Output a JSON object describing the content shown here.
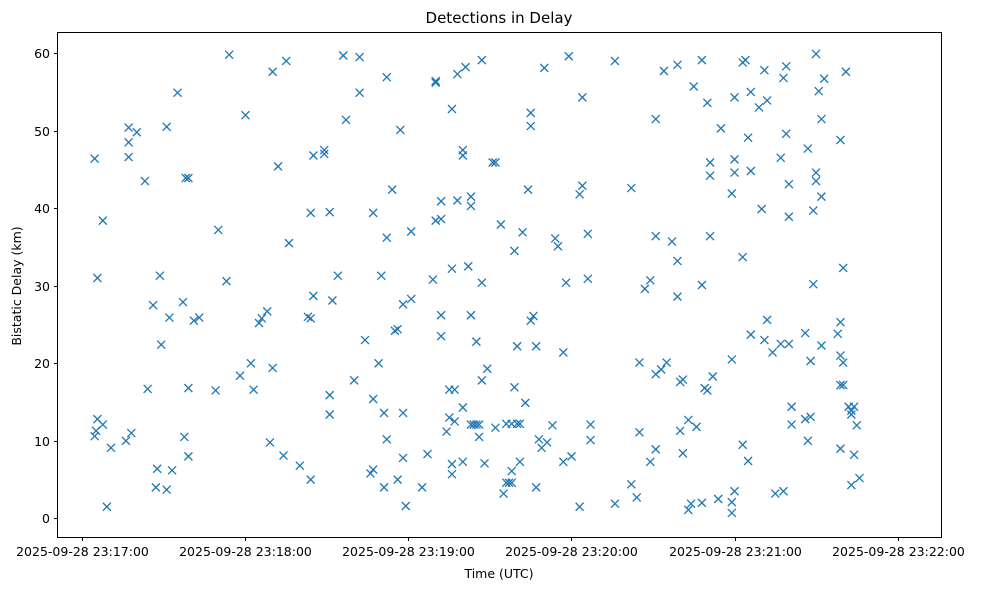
{
  "chart_data": {
    "type": "scatter",
    "title": "Detections in Delay",
    "xlabel": "Time (UTC)",
    "ylabel": "Bistatic Delay (km)",
    "x_axis": "time",
    "xlim": [
      "2025-09-28 23:16:51",
      "2025-09-28 23:22:16"
    ],
    "ylim": [
      -2.4,
      62.6
    ],
    "x_ticks": [
      {
        "value": "2025-09-28 23:17:00",
        "label": "2025-09-28 23:17:00"
      },
      {
        "value": "2025-09-28 23:18:00",
        "label": "2025-09-28 23:18:00"
      },
      {
        "value": "2025-09-28 23:19:00",
        "label": "2025-09-28 23:19:00"
      },
      {
        "value": "2025-09-28 23:20:00",
        "label": "2025-09-28 23:20:00"
      },
      {
        "value": "2025-09-28 23:21:00",
        "label": "2025-09-28 23:21:00"
      },
      {
        "value": "2025-09-28 23:22:00",
        "label": "2025-09-28 23:22:00"
      }
    ],
    "y_ticks": [
      0,
      10,
      20,
      30,
      40,
      50,
      60
    ],
    "marker": "x",
    "grid": false,
    "color": "#1f77b4",
    "points": [
      [
        "23:17:04.5",
        46.4
      ],
      [
        "23:17:04.5",
        10.6
      ],
      [
        "23:17:05.0",
        11.3
      ],
      [
        "23:17:05.5",
        31.0
      ],
      [
        "23:17:05.5",
        12.8
      ],
      [
        "23:17:07.5",
        38.4
      ],
      [
        "23:17:07.5",
        12.1
      ],
      [
        "23:17:09.0",
        1.5
      ],
      [
        "23:17:10.5",
        9.1
      ],
      [
        "23:17:16.0",
        10.0
      ],
      [
        "23:17:17.0",
        50.4
      ],
      [
        "23:17:17.0",
        48.5
      ],
      [
        "23:17:17.0",
        46.6
      ],
      [
        "23:17:18.0",
        11.0
      ],
      [
        "23:17:20.0",
        49.8
      ],
      [
        "23:17:23.0",
        43.5
      ],
      [
        "23:17:24.0",
        16.7
      ],
      [
        "23:17:26.0",
        27.5
      ],
      [
        "23:17:27.0",
        4.0
      ],
      [
        "23:17:27.5",
        6.4
      ],
      [
        "23:17:28.5",
        31.3
      ],
      [
        "23:17:29.0",
        22.4
      ],
      [
        "23:17:31.0",
        50.5
      ],
      [
        "23:17:31.0",
        3.7
      ],
      [
        "23:17:32.0",
        25.9
      ],
      [
        "23:17:33.0",
        6.2
      ],
      [
        "23:17:35.0",
        54.9
      ],
      [
        "23:17:37.0",
        27.9
      ],
      [
        "23:17:37.5",
        10.5
      ],
      [
        "23:17:38.0",
        43.9
      ],
      [
        "23:17:39.0",
        43.9
      ],
      [
        "23:17:39.0",
        16.8
      ],
      [
        "23:17:39.0",
        8.0
      ],
      [
        "23:17:41.0",
        25.5
      ],
      [
        "23:17:43.0",
        25.9
      ],
      [
        "23:17:49.0",
        16.5
      ],
      [
        "23:17:50.0",
        37.2
      ],
      [
        "23:17:53.0",
        30.6
      ],
      [
        "23:17:54.0",
        59.8
      ],
      [
        "23:17:58.0",
        18.4
      ],
      [
        "23:18:00.0",
        52.0
      ],
      [
        "23:18:02.0",
        20.0
      ],
      [
        "23:18:03.0",
        16.6
      ],
      [
        "23:18:05.0",
        25.2
      ],
      [
        "23:18:06.0",
        25.8
      ],
      [
        "23:18:08.0",
        26.7
      ],
      [
        "23:18:09.0",
        9.8
      ],
      [
        "23:18:10.0",
        19.4
      ],
      [
        "23:18:10.0",
        57.6
      ],
      [
        "23:18:12.0",
        45.4
      ],
      [
        "23:18:14.0",
        8.1
      ],
      [
        "23:18:15.0",
        59.0
      ],
      [
        "23:18:16.0",
        35.5
      ],
      [
        "23:18:20.0",
        6.8
      ],
      [
        "23:18:23.0",
        26.0
      ],
      [
        "23:18:24.0",
        25.8
      ],
      [
        "23:18:24.0",
        39.4
      ],
      [
        "23:18:24.0",
        5.0
      ],
      [
        "23:18:25.0",
        46.8
      ],
      [
        "23:18:25.0",
        28.7
      ],
      [
        "23:18:29.0",
        47.5
      ],
      [
        "23:18:29.0",
        47.0
      ],
      [
        "23:18:31.0",
        39.5
      ],
      [
        "23:18:31.0",
        15.9
      ],
      [
        "23:18:31.0",
        13.4
      ],
      [
        "23:18:32.0",
        28.1
      ],
      [
        "23:18:34.0",
        31.3
      ],
      [
        "23:18:36.0",
        59.7
      ],
      [
        "23:18:37.0",
        51.4
      ],
      [
        "23:18:40.0",
        17.8
      ],
      [
        "23:18:42.0",
        59.5
      ],
      [
        "23:18:42.0",
        54.9
      ],
      [
        "23:18:44.0",
        23.0
      ],
      [
        "23:18:46.0",
        5.8
      ],
      [
        "23:18:47.0",
        15.4
      ],
      [
        "23:18:47.0",
        6.3
      ],
      [
        "23:18:47.0",
        39.4
      ],
      [
        "23:18:49.0",
        20.0
      ],
      [
        "23:18:50.0",
        31.3
      ],
      [
        "23:18:51.0",
        13.6
      ],
      [
        "23:18:51.0",
        4.0
      ],
      [
        "23:18:52.0",
        10.2
      ],
      [
        "23:18:52.0",
        36.2
      ],
      [
        "23:18:52.0",
        56.9
      ],
      [
        "23:18:54.0",
        42.4
      ],
      [
        "23:18:55.0",
        24.2
      ],
      [
        "23:18:56.0",
        24.4
      ],
      [
        "23:18:56.0",
        5.0
      ],
      [
        "23:18:57.0",
        50.1
      ],
      [
        "23:18:58.0",
        13.6
      ],
      [
        "23:18:58.0",
        7.8
      ],
      [
        "23:18:58.0",
        27.6
      ],
      [
        "23:18:59.0",
        1.6
      ],
      [
        "23:19:01.0",
        28.3
      ],
      [
        "23:19:01.0",
        37.0
      ],
      [
        "23:19:05.0",
        4.0
      ],
      [
        "23:19:07.0",
        8.3
      ],
      [
        "23:19:09.0",
        30.8
      ],
      [
        "23:19:10.0",
        56.4
      ],
      [
        "23:19:10.0",
        56.2
      ],
      [
        "23:19:10.0",
        38.4
      ],
      [
        "23:19:12.0",
        40.9
      ],
      [
        "23:19:12.0",
        38.6
      ],
      [
        "23:19:12.0",
        26.2
      ],
      [
        "23:19:12.0",
        23.5
      ],
      [
        "23:19:14.0",
        11.2
      ],
      [
        "23:19:15.0",
        13.0
      ],
      [
        "23:19:15.0",
        16.6
      ],
      [
        "23:19:16.0",
        52.8
      ],
      [
        "23:19:16.0",
        32.2
      ],
      [
        "23:19:16.0",
        7.0
      ],
      [
        "23:19:16.0",
        5.7
      ],
      [
        "23:19:17.0",
        12.5
      ],
      [
        "23:19:17.0",
        16.6
      ],
      [
        "23:19:18.0",
        57.3
      ],
      [
        "23:19:18.0",
        41.0
      ],
      [
        "23:19:20.0",
        47.5
      ],
      [
        "23:19:20.0",
        46.8
      ],
      [
        "23:19:20.0",
        14.3
      ],
      [
        "23:19:20.0",
        7.3
      ],
      [
        "23:19:21.0",
        58.2
      ],
      [
        "23:19:22.0",
        32.5
      ],
      [
        "23:19:23.0",
        40.3
      ],
      [
        "23:19:23.0",
        41.5
      ],
      [
        "23:19:23.0",
        26.2
      ],
      [
        "23:19:23.0",
        12.1
      ],
      [
        "23:19:24.0",
        12.1
      ],
      [
        "23:19:25.0",
        12.1
      ],
      [
        "23:19:25.0",
        22.8
      ],
      [
        "23:19:26.0",
        12.1
      ],
      [
        "23:19:26.0",
        10.5
      ],
      [
        "23:19:27.0",
        17.8
      ],
      [
        "23:19:27.0",
        30.4
      ],
      [
        "23:19:27.0",
        59.1
      ],
      [
        "23:19:28.0",
        7.1
      ],
      [
        "23:19:29.0",
        19.3
      ],
      [
        "23:19:31.0",
        45.9
      ],
      [
        "23:19:32.0",
        45.9
      ],
      [
        "23:19:32.0",
        11.7
      ],
      [
        "23:19:34.0",
        37.9
      ],
      [
        "23:19:35.0",
        3.2
      ],
      [
        "23:19:36.0",
        12.2
      ],
      [
        "23:19:36.0",
        4.6
      ],
      [
        "23:19:37.0",
        4.6
      ],
      [
        "23:19:38.0",
        4.6
      ],
      [
        "23:19:38.0",
        6.1
      ],
      [
        "23:19:38.0",
        12.2
      ],
      [
        "23:19:39.0",
        34.5
      ],
      [
        "23:19:39.0",
        16.9
      ],
      [
        "23:19:40.0",
        12.2
      ],
      [
        "23:19:40.0",
        22.2
      ],
      [
        "23:19:41.0",
        12.2
      ],
      [
        "23:19:41.0",
        7.3
      ],
      [
        "23:19:42.0",
        36.9
      ],
      [
        "23:19:43.0",
        14.9
      ],
      [
        "23:19:44.0",
        42.4
      ],
      [
        "23:19:45.0",
        52.3
      ],
      [
        "23:19:45.0",
        50.6
      ],
      [
        "23:19:45.0",
        25.5
      ],
      [
        "23:19:46.0",
        26.1
      ],
      [
        "23:19:47.0",
        22.2
      ],
      [
        "23:19:47.0",
        4.0
      ],
      [
        "23:19:48.0",
        10.2
      ],
      [
        "23:19:49.0",
        9.1
      ],
      [
        "23:19:50.0",
        58.1
      ],
      [
        "23:19:51.0",
        9.8
      ],
      [
        "23:19:53.0",
        12.0
      ],
      [
        "23:19:54.0",
        36.1
      ],
      [
        "23:19:55.0",
        35.1
      ],
      [
        "23:19:57.0",
        21.4
      ],
      [
        "23:19:57.0",
        7.3
      ],
      [
        "23:19:58.0",
        30.4
      ],
      [
        "23:19:59.0",
        59.6
      ],
      [
        "23:20:00.0",
        8.0
      ],
      [
        "23:20:03.0",
        1.5
      ],
      [
        "23:20:03.0",
        41.8
      ],
      [
        "23:20:04.0",
        42.9
      ],
      [
        "23:20:04.0",
        54.3
      ],
      [
        "23:20:06.0",
        36.7
      ],
      [
        "23:20:06.0",
        30.9
      ],
      [
        "23:20:07.0",
        12.1
      ],
      [
        "23:20:07.0",
        10.1
      ],
      [
        "23:20:16.0",
        59.0
      ],
      [
        "23:20:16.0",
        1.9
      ],
      [
        "23:20:22.0",
        42.6
      ],
      [
        "23:20:22.0",
        4.4
      ],
      [
        "23:20:24.0",
        2.7
      ],
      [
        "23:20:25.0",
        11.1
      ],
      [
        "23:20:25.0",
        20.1
      ],
      [
        "23:20:27.0",
        29.6
      ],
      [
        "23:20:29.0",
        30.7
      ],
      [
        "23:20:29.0",
        7.3
      ],
      [
        "23:20:31.0",
        36.4
      ],
      [
        "23:20:31.0",
        51.5
      ],
      [
        "23:20:31.0",
        18.6
      ],
      [
        "23:20:31.0",
        8.9
      ],
      [
        "23:20:33.0",
        19.2
      ],
      [
        "23:20:34.0",
        57.7
      ],
      [
        "23:20:35.0",
        20.1
      ],
      [
        "23:20:37.0",
        35.7
      ],
      [
        "23:20:39.0",
        58.5
      ],
      [
        "23:20:39.0",
        33.2
      ],
      [
        "23:20:39.0",
        28.6
      ],
      [
        "23:20:40.0",
        17.6
      ],
      [
        "23:20:40.0",
        11.3
      ],
      [
        "23:20:41.0",
        17.9
      ],
      [
        "23:20:41.0",
        8.4
      ],
      [
        "23:20:43.0",
        12.7
      ],
      [
        "23:20:43.0",
        1.1
      ],
      [
        "23:20:44.0",
        1.9
      ],
      [
        "23:20:45.0",
        55.7
      ],
      [
        "23:20:46.0",
        11.8
      ],
      [
        "23:20:48.0",
        2.0
      ],
      [
        "23:20:48.0",
        30.1
      ],
      [
        "23:20:48.0",
        59.1
      ],
      [
        "23:20:49.0",
        16.8
      ],
      [
        "23:20:50.0",
        16.5
      ],
      [
        "23:20:50.0",
        53.6
      ],
      [
        "23:20:51.0",
        45.9
      ],
      [
        "23:20:51.0",
        44.2
      ],
      [
        "23:20:51.0",
        36.4
      ],
      [
        "23:20:52.0",
        18.3
      ],
      [
        "23:20:54.0",
        2.5
      ],
      [
        "23:20:55.0",
        50.3
      ],
      [
        "23:20:59.0",
        41.9
      ],
      [
        "23:20:59.0",
        20.5
      ],
      [
        "23:20:59.0",
        2.1
      ],
      [
        "23:20:59.0",
        0.7
      ],
      [
        "23:21:00.0",
        3.5
      ],
      [
        "23:21:00.0",
        46.3
      ],
      [
        "23:21:00.0",
        44.6
      ],
      [
        "23:21:00.0",
        54.3
      ],
      [
        "23:21:03.0",
        33.7
      ],
      [
        "23:21:03.0",
        9.5
      ],
      [
        "23:21:03.0",
        58.8
      ],
      [
        "23:21:04.0",
        59.1
      ],
      [
        "23:21:05.0",
        49.1
      ],
      [
        "23:21:05.0",
        7.4
      ],
      [
        "23:21:06.0",
        23.7
      ],
      [
        "23:21:06.0",
        55.0
      ],
      [
        "23:21:06.0",
        44.8
      ],
      [
        "23:21:09.0",
        53.0
      ],
      [
        "23:21:10.0",
        39.9
      ],
      [
        "23:21:11.0",
        57.8
      ],
      [
        "23:21:11.0",
        23.0
      ],
      [
        "23:21:12.0",
        53.9
      ],
      [
        "23:21:12.0",
        25.6
      ],
      [
        "23:21:14.0",
        21.4
      ],
      [
        "23:21:15.0",
        3.2
      ],
      [
        "23:21:17.0",
        46.5
      ],
      [
        "23:21:17.0",
        22.5
      ],
      [
        "23:21:18.0",
        3.5
      ],
      [
        "23:21:18.0",
        56.8
      ],
      [
        "23:21:19.0",
        58.3
      ],
      [
        "23:21:19.0",
        49.6
      ],
      [
        "23:21:20.0",
        43.1
      ],
      [
        "23:21:20.0",
        38.9
      ],
      [
        "23:21:20.0",
        22.5
      ],
      [
        "23:21:21.0",
        14.4
      ],
      [
        "23:21:21.0",
        12.1
      ],
      [
        "23:21:26.0",
        12.8
      ],
      [
        "23:21:26.0",
        23.9
      ],
      [
        "23:21:27.0",
        47.7
      ],
      [
        "23:21:27.0",
        10.0
      ],
      [
        "23:21:28.0",
        13.1
      ],
      [
        "23:21:28.0",
        20.3
      ],
      [
        "23:21:29.0",
        39.7
      ],
      [
        "23:21:29.0",
        30.2
      ],
      [
        "23:21:30.0",
        44.6
      ],
      [
        "23:21:30.0",
        43.5
      ],
      [
        "23:21:30.0",
        59.9
      ],
      [
        "23:21:31.0",
        55.1
      ],
      [
        "23:21:32.0",
        51.5
      ],
      [
        "23:21:32.0",
        41.5
      ],
      [
        "23:21:32.0",
        22.3
      ],
      [
        "23:21:33.0",
        56.7
      ],
      [
        "23:21:38.0",
        23.8
      ],
      [
        "23:21:39.0",
        21.0
      ],
      [
        "23:21:39.0",
        25.3
      ],
      [
        "23:21:39.0",
        17.2
      ],
      [
        "23:21:39.0",
        9.0
      ],
      [
        "23:21:39.0",
        48.8
      ],
      [
        "23:21:40.0",
        32.3
      ],
      [
        "23:21:40.0",
        17.2
      ],
      [
        "23:21:40.0",
        20.1
      ],
      [
        "23:21:41.0",
        57.6
      ],
      [
        "23:21:42.0",
        14.4
      ],
      [
        "23:21:43.0",
        13.9
      ],
      [
        "23:21:43.0",
        13.4
      ],
      [
        "23:21:43.0",
        4.3
      ],
      [
        "23:21:44.0",
        14.4
      ],
      [
        "23:21:44.0",
        8.2
      ],
      [
        "23:21:45.0",
        12.0
      ],
      [
        "23:21:46.0",
        5.2
      ]
    ]
  }
}
